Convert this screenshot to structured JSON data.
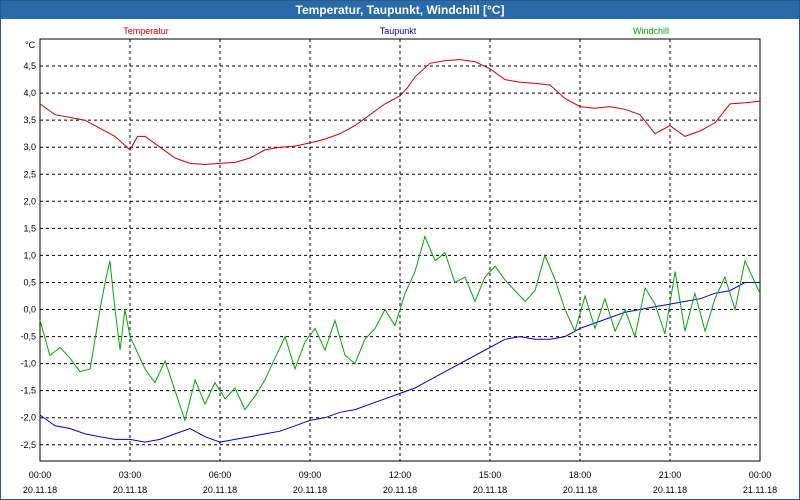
{
  "window": {
    "title": "Temperatur, Taupunkt, Windchill [°C]"
  },
  "colors": {
    "temperatur": "#cc0000",
    "taupunkt": "#0000cc",
    "windchill": "#00aa00",
    "grid": "#000000"
  },
  "chart_data": {
    "type": "line",
    "title": "Temperatur, Taupunkt, Windchill [°C]",
    "ylabel": "°C",
    "xlabel": "",
    "ylim": [
      -2.8,
      5.0
    ],
    "xlim": [
      0,
      24
    ],
    "y_ticks": [
      4.5,
      4.0,
      3.5,
      3.0,
      2.5,
      2.0,
      1.5,
      1.0,
      0.5,
      0.0,
      -0.5,
      -1.0,
      -1.5,
      -2.0,
      -2.5
    ],
    "y_tick_labels": [
      "4,5",
      "4,0",
      "3,5",
      "3,0",
      "2,5",
      "2,0",
      "1,5",
      "1,0",
      "0,5",
      "0,0",
      "-0,5",
      "-1,0",
      "-1,5",
      "-2,0",
      "-2,5"
    ],
    "x_ticks": [
      0,
      3,
      6,
      9,
      12,
      15,
      18,
      21,
      24
    ],
    "x_tick_labels": [
      "00:00",
      "03:00",
      "06:00",
      "09:00",
      "12:00",
      "15:00",
      "18:00",
      "21:00",
      "00:00"
    ],
    "x_tick_dates": [
      "20.11.18",
      "20.11.18",
      "20.11.18",
      "20.11.18",
      "20.11.18",
      "20.11.18",
      "20.11.18",
      "20.11.18",
      "21.11.18"
    ],
    "legend": [
      "Temperatur",
      "Taupunkt",
      "Windchill"
    ],
    "grid": true,
    "series": [
      {
        "name": "Temperatur",
        "x": [
          0,
          0.5,
          1,
          1.5,
          2,
          2.5,
          3,
          3.25,
          3.5,
          4,
          4.5,
          5,
          5.5,
          6,
          6.5,
          7,
          7.5,
          8,
          8.5,
          9,
          9.5,
          10,
          10.5,
          11,
          11.5,
          12,
          12.25,
          12.5,
          13,
          13.5,
          14,
          14.5,
          15,
          15.5,
          16,
          16.5,
          17,
          17.5,
          18,
          18.5,
          19,
          19.5,
          20,
          20.5,
          21,
          21.5,
          22,
          22.5,
          23,
          23.5,
          24
        ],
        "values": [
          3.8,
          3.6,
          3.55,
          3.5,
          3.35,
          3.2,
          2.95,
          3.2,
          3.2,
          3.0,
          2.8,
          2.7,
          2.68,
          2.7,
          2.72,
          2.8,
          2.95,
          3.0,
          3.02,
          3.08,
          3.15,
          3.25,
          3.4,
          3.6,
          3.8,
          3.95,
          4.1,
          4.3,
          4.55,
          4.6,
          4.62,
          4.58,
          4.45,
          4.25,
          4.2,
          4.18,
          4.15,
          3.9,
          3.75,
          3.72,
          3.75,
          3.7,
          3.6,
          3.25,
          3.4,
          3.2,
          3.3,
          3.45,
          3.8,
          3.82,
          3.85
        ]
      },
      {
        "name": "Taupunkt",
        "x": [
          0,
          0.5,
          1,
          1.5,
          2,
          2.5,
          3,
          3.5,
          4,
          4.5,
          5,
          5.5,
          6,
          6.5,
          7,
          7.5,
          8,
          8.5,
          9,
          9.5,
          10,
          10.5,
          11,
          11.5,
          12,
          12.5,
          13,
          13.5,
          14,
          14.5,
          15,
          15.5,
          16,
          16.5,
          17,
          17.5,
          18,
          18.5,
          19,
          19.5,
          20,
          20.5,
          21,
          21.5,
          22,
          22.5,
          23,
          23.5,
          24
        ],
        "values": [
          -1.95,
          -2.15,
          -2.2,
          -2.3,
          -2.35,
          -2.4,
          -2.4,
          -2.45,
          -2.4,
          -2.3,
          -2.2,
          -2.35,
          -2.45,
          -2.4,
          -2.35,
          -2.3,
          -2.25,
          -2.15,
          -2.05,
          -2.0,
          -1.9,
          -1.85,
          -1.75,
          -1.65,
          -1.55,
          -1.45,
          -1.3,
          -1.15,
          -1.0,
          -0.85,
          -0.7,
          -0.55,
          -0.5,
          -0.55,
          -0.55,
          -0.5,
          -0.35,
          -0.25,
          -0.15,
          -0.05,
          0.0,
          0.05,
          0.1,
          0.15,
          0.2,
          0.3,
          0.35,
          0.5,
          0.5
        ]
      },
      {
        "name": "Windchill",
        "x": [
          0,
          0.33,
          0.67,
          1,
          1.33,
          1.67,
          2,
          2.17,
          2.33,
          2.5,
          2.67,
          2.83,
          3,
          3.17,
          3.5,
          3.83,
          4.17,
          4.5,
          4.83,
          5.17,
          5.5,
          5.83,
          6.17,
          6.5,
          6.83,
          7.17,
          7.5,
          7.83,
          8.17,
          8.5,
          8.83,
          9.17,
          9.5,
          9.83,
          10.17,
          10.5,
          10.83,
          11.17,
          11.5,
          11.83,
          12.17,
          12.5,
          12.83,
          13.17,
          13.5,
          13.83,
          14.17,
          14.5,
          14.83,
          15.17,
          15.5,
          15.83,
          16.17,
          16.5,
          16.83,
          17.17,
          17.5,
          17.83,
          18.17,
          18.5,
          18.83,
          19.17,
          19.5,
          19.83,
          20.17,
          20.5,
          20.83,
          21.17,
          21.5,
          21.83,
          22.17,
          22.5,
          22.83,
          23.17,
          23.5,
          23.83,
          24
        ],
        "values": [
          -0.2,
          -0.85,
          -0.7,
          -0.9,
          -1.15,
          -1.1,
          0.0,
          0.5,
          0.9,
          0.0,
          -0.75,
          0.0,
          -0.5,
          -0.7,
          -1.1,
          -1.35,
          -0.95,
          -1.5,
          -2.05,
          -1.3,
          -1.75,
          -1.35,
          -1.65,
          -1.45,
          -1.85,
          -1.6,
          -1.3,
          -0.9,
          -0.5,
          -1.1,
          -0.6,
          -0.35,
          -0.75,
          -0.2,
          -0.85,
          -1.0,
          -0.55,
          -0.35,
          0.0,
          -0.3,
          0.3,
          0.7,
          1.35,
          0.9,
          1.05,
          0.5,
          0.6,
          0.15,
          0.6,
          0.8,
          0.55,
          0.35,
          0.15,
          0.35,
          1.0,
          0.55,
          0.0,
          -0.4,
          0.25,
          -0.35,
          0.2,
          -0.4,
          0.0,
          -0.5,
          0.4,
          0.1,
          -0.45,
          0.7,
          -0.4,
          0.3,
          -0.4,
          0.2,
          0.6,
          0.0,
          0.9,
          0.5,
          0.3
        ]
      }
    ]
  }
}
